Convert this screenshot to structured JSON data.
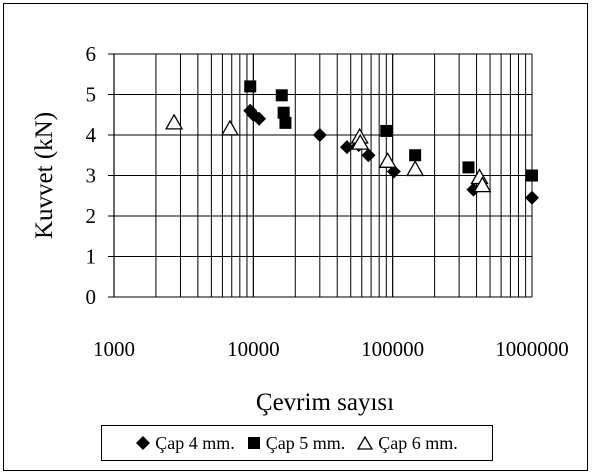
{
  "chart_data": {
    "type": "scatter",
    "xscale": "log",
    "xlabel": "Çevrim sayısı",
    "ylabel": "Kuvvet  (kN)",
    "xlim": [
      1000,
      1000000
    ],
    "ylim": [
      0,
      6
    ],
    "xticks": [
      "1000",
      "10000",
      "100000",
      "1000000"
    ],
    "yticks": [
      "0",
      "1",
      "2",
      "3",
      "4",
      "5",
      "6"
    ],
    "grid": true,
    "legend_position": "bottom",
    "series": [
      {
        "name": "Çap 4 mm.",
        "marker": "diamond",
        "points": [
          [
            9500,
            4.6
          ],
          [
            10000,
            4.5
          ],
          [
            11000,
            4.4
          ],
          [
            30000,
            4.0
          ],
          [
            47000,
            3.7
          ],
          [
            57000,
            3.75
          ],
          [
            67000,
            3.5
          ],
          [
            102000,
            3.1
          ],
          [
            380000,
            2.65
          ],
          [
            1000000,
            2.45
          ]
        ]
      },
      {
        "name": "Çap 5 mm.",
        "marker": "square",
        "points": [
          [
            9500,
            5.2
          ],
          [
            16000,
            4.98
          ],
          [
            16500,
            4.55
          ],
          [
            17000,
            4.3
          ],
          [
            90000,
            4.1
          ],
          [
            145000,
            3.5
          ],
          [
            350000,
            3.2
          ],
          [
            1000000,
            3.0
          ]
        ]
      },
      {
        "name": "Çap 6 mm.",
        "marker": "triangle",
        "points": [
          [
            2700,
            4.3
          ],
          [
            6800,
            4.15
          ],
          [
            58000,
            3.95
          ],
          [
            58500,
            3.8
          ],
          [
            92000,
            3.35
          ],
          [
            145000,
            3.15
          ],
          [
            420000,
            2.95
          ],
          [
            440000,
            2.75
          ]
        ]
      }
    ]
  }
}
